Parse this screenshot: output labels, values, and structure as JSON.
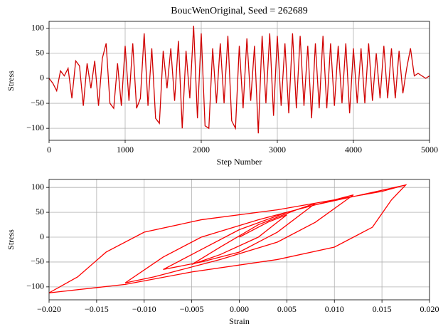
{
  "chart_data": [
    {
      "type": "line",
      "title": "BoucWenOriginal, Seed = 262689",
      "x_label": "Step Number",
      "y_label": "Stress",
      "x": [
        0,
        50,
        100,
        150,
        200,
        250,
        300,
        350,
        400,
        450,
        500,
        550,
        600,
        650,
        700,
        750,
        800,
        850,
        900,
        950,
        1000,
        1050,
        1100,
        1150,
        1200,
        1250,
        1300,
        1350,
        1400,
        1450,
        1500,
        1550,
        1600,
        1650,
        1700,
        1750,
        1800,
        1850,
        1900,
        1950,
        2000,
        2050,
        2100,
        2150,
        2200,
        2250,
        2300,
        2350,
        2400,
        2450,
        2500,
        2550,
        2600,
        2650,
        2700,
        2750,
        2800,
        2850,
        2900,
        2950,
        3000,
        3050,
        3100,
        3150,
        3200,
        3250,
        3300,
        3350,
        3400,
        3450,
        3500,
        3550,
        3600,
        3650,
        3700,
        3750,
        3800,
        3850,
        3900,
        3950,
        4000,
        4050,
        4100,
        4150,
        4200,
        4250,
        4300,
        4350,
        4400,
        4450,
        4500,
        4550,
        4600,
        4650,
        4700,
        4750,
        4800,
        4850,
        4900,
        4950,
        5000
      ],
      "series": [
        {
          "name": "Stress",
          "color": "#d00000",
          "values": [
            0,
            -10,
            -25,
            15,
            5,
            20,
            -40,
            35,
            25,
            -55,
            30,
            -20,
            35,
            -55,
            40,
            70,
            -50,
            -60,
            30,
            -55,
            65,
            -45,
            70,
            -60,
            -40,
            90,
            -55,
            60,
            -80,
            -90,
            55,
            -20,
            60,
            -45,
            75,
            -100,
            55,
            -40,
            105,
            -80,
            90,
            -95,
            -100,
            60,
            -50,
            70,
            -50,
            85,
            -85,
            -100,
            65,
            -60,
            80,
            -45,
            65,
            -110,
            85,
            -50,
            90,
            -75,
            85,
            -55,
            70,
            -70,
            90,
            -60,
            85,
            -55,
            65,
            -80,
            70,
            -60,
            85,
            -60,
            70,
            -55,
            65,
            -50,
            70,
            -70,
            60,
            -50,
            60,
            -50,
            70,
            -45,
            50,
            -40,
            65,
            -40,
            60,
            -40,
            55,
            -30,
            20,
            60,
            5,
            10,
            5,
            0,
            5
          ]
        }
      ],
      "xlim": [
        0,
        5000
      ],
      "xticks": [
        0,
        1000,
        2000,
        3000,
        4000,
        5000
      ],
      "ylim": [
        -124,
        114
      ],
      "yticks": [
        {
          "value": -100,
          "label": "−100"
        },
        {
          "value": -50,
          "label": "−50"
        },
        0,
        50,
        100
      ],
      "grid": true
    },
    {
      "type": "line",
      "x_label": "Strain",
      "y_label": "Stress",
      "x": [
        0,
        0.003,
        0.005,
        0.002,
        -0.002,
        -0.005,
        -0.002,
        0.002,
        0.006,
        0.008,
        0.004,
        0,
        -0.004,
        -0.008,
        -0.004,
        0,
        0.005,
        0.01,
        0.012,
        0.008,
        0.004,
        -0.002,
        -0.009,
        -0.012,
        -0.008,
        -0.004,
        0.002,
        0.008,
        0.014,
        0.0175,
        0.016,
        0.014,
        0.01,
        0.004,
        -0.005,
        -0.012,
        -0.02,
        -0.017,
        -0.014,
        -0.01,
        -0.004,
        0.004,
        0.01,
        0.015,
        0.0175
      ],
      "series": [
        {
          "name": "Stress",
          "color": "#ff0000",
          "values": [
            0,
            30,
            45,
            0,
            -35,
            -55,
            -20,
            25,
            55,
            68,
            10,
            -30,
            -50,
            -65,
            -25,
            15,
            50,
            75,
            85,
            30,
            -10,
            -45,
            -80,
            -92,
            -40,
            0,
            35,
            65,
            90,
            105,
            75,
            20,
            -20,
            -45,
            -70,
            -95,
            -112,
            -80,
            -30,
            10,
            35,
            55,
            75,
            92,
            105
          ]
        }
      ],
      "xlim": [
        -0.02,
        0.02
      ],
      "xticks": [
        {
          "value": -0.02,
          "label": "−0.020"
        },
        {
          "value": -0.015,
          "label": "−0.015"
        },
        {
          "value": -0.01,
          "label": "−0.010"
        },
        {
          "value": -0.005,
          "label": "−0.005"
        },
        {
          "value": 0,
          "label": "0.000"
        },
        {
          "value": 0.005,
          "label": "0.005"
        },
        {
          "value": 0.01,
          "label": "0.010"
        },
        {
          "value": 0.015,
          "label": "0.015"
        },
        {
          "value": 0.02,
          "label": "0.020"
        }
      ],
      "ylim": [
        -126,
        116
      ],
      "yticks": [
        {
          "value": -100,
          "label": "−100"
        },
        {
          "value": -50,
          "label": "−50"
        },
        0,
        50,
        100
      ],
      "grid": true
    }
  ]
}
